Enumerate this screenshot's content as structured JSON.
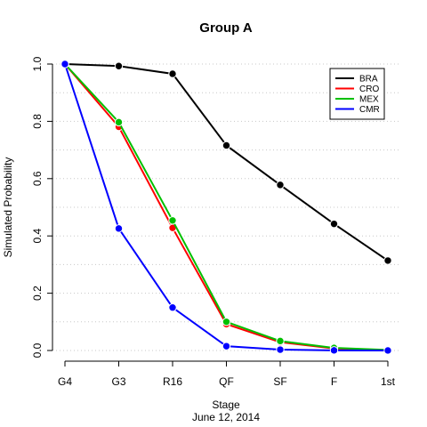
{
  "chart_data": {
    "type": "line",
    "title": "Group A",
    "xlabel": "Stage",
    "subtitle": "June 12, 2014",
    "ylabel": "Simulated Probability",
    "categories": [
      "G4",
      "G3",
      "R16",
      "QF",
      "SF",
      "F",
      "1st"
    ],
    "ylim": [
      0,
      1
    ],
    "yticks": [
      "0.0",
      "0.2",
      "0.4",
      "0.6",
      "0.8",
      "1.0"
    ],
    "grid": "horizontal dotted",
    "legend_position": "top-right",
    "series": [
      {
        "name": "BRA",
        "color": "#000000",
        "values": [
          1.0,
          0.993,
          0.966,
          0.716,
          0.578,
          0.442,
          0.314
        ]
      },
      {
        "name": "CRO",
        "color": "#ff0000",
        "values": [
          1.0,
          0.781,
          0.428,
          0.092,
          0.029,
          0.007,
          0.001
        ]
      },
      {
        "name": "MEX",
        "color": "#00c000",
        "values": [
          1.0,
          0.797,
          0.454,
          0.1,
          0.033,
          0.009,
          0.002
        ]
      },
      {
        "name": "CMR",
        "color": "#0000ff",
        "values": [
          1.0,
          0.426,
          0.15,
          0.015,
          0.003,
          0.0005,
          0.0001
        ]
      }
    ]
  }
}
